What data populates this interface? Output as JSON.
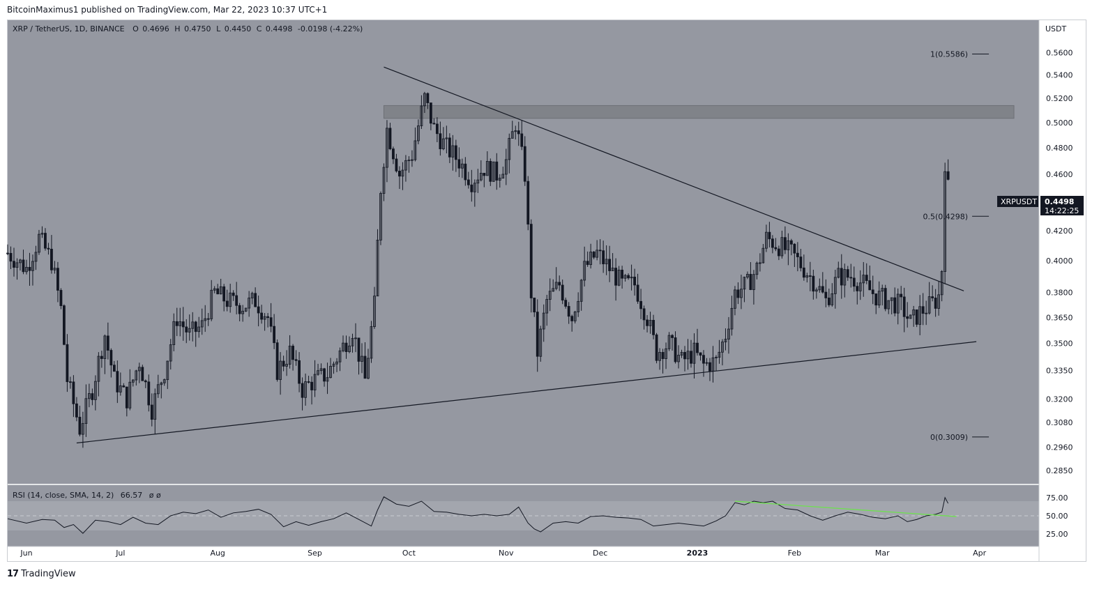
{
  "header": {
    "published": "BitcoinMaximus1 published on TradingView.com, Mar 22, 2023 10:37 UTC+1"
  },
  "footer": {
    "brand_mark": "17",
    "brand": "TradingView"
  },
  "colors": {
    "plot_bg": "#9598a1",
    "rsi_band": "#a3a6ae",
    "candle": "#131722",
    "trendline": "#131722",
    "rsi_line": "#131722",
    "rsi_trend": "#6ee14f",
    "resistance_zone": "#808389"
  },
  "chart_data": {
    "type": "candlestick",
    "symbol_line": {
      "pair": "XRP / TetherUS, 1D, BINANCE",
      "o_label": "O",
      "o_value": "0.4696",
      "h_label": "H",
      "h_value": "0.4750",
      "l_label": "L",
      "l_value": "0.4450",
      "c_label": "C",
      "c_value": "0.4498",
      "change": "-0.0198 (-4.22%)"
    },
    "currency_label": "USDT",
    "price_axis": {
      "ylim": [
        0.279,
        0.59
      ],
      "ticks": [
        "0.5600",
        "0.5400",
        "0.5200",
        "0.5000",
        "0.4800",
        "0.4600",
        "0.4200",
        "0.4000",
        "0.3800",
        "0.3650",
        "0.3500",
        "0.3350",
        "0.3200",
        "0.3080",
        "0.2960",
        "0.2850"
      ],
      "scale": "log"
    },
    "time_axis": {
      "start": "2022-05-26",
      "end": "2023-04-20",
      "labels": [
        {
          "date": "2022-06-01",
          "text": "Jun",
          "bold": false
        },
        {
          "date": "2022-07-01",
          "text": "Jul",
          "bold": false
        },
        {
          "date": "2022-08-01",
          "text": "Aug",
          "bold": false
        },
        {
          "date": "2022-09-01",
          "text": "Sep",
          "bold": false
        },
        {
          "date": "2022-10-01",
          "text": "Oct",
          "bold": false
        },
        {
          "date": "2022-11-01",
          "text": "Nov",
          "bold": false
        },
        {
          "date": "2022-12-01",
          "text": "Dec",
          "bold": false
        },
        {
          "date": "2023-01-01",
          "text": "2023",
          "bold": true
        },
        {
          "date": "2023-02-01",
          "text": "Feb",
          "bold": false
        },
        {
          "date": "2023-03-01",
          "text": "Mar",
          "bold": false
        },
        {
          "date": "2023-04-01",
          "text": "Apr",
          "bold": false
        }
      ]
    },
    "last_price": {
      "symbol": "XRPUSDT",
      "price": "0.4498",
      "countdown": "14:22:25"
    },
    "closes": [
      {
        "date": "2022-05-26",
        "close": 0.405
      },
      {
        "date": "2022-06-01",
        "close": 0.395
      },
      {
        "date": "2022-06-05",
        "close": 0.415
      },
      {
        "date": "2022-06-09",
        "close": 0.4
      },
      {
        "date": "2022-06-12",
        "close": 0.37
      },
      {
        "date": "2022-06-14",
        "close": 0.33
      },
      {
        "date": "2022-06-18",
        "close": 0.305
      },
      {
        "date": "2022-06-22",
        "close": 0.325
      },
      {
        "date": "2022-06-26",
        "close": 0.355
      },
      {
        "date": "2022-06-29",
        "close": 0.33
      },
      {
        "date": "2022-07-03",
        "close": 0.32
      },
      {
        "date": "2022-07-07",
        "close": 0.34
      },
      {
        "date": "2022-07-11",
        "close": 0.315
      },
      {
        "date": "2022-07-15",
        "close": 0.335
      },
      {
        "date": "2022-07-19",
        "close": 0.365
      },
      {
        "date": "2022-07-23",
        "close": 0.355
      },
      {
        "date": "2022-07-27",
        "close": 0.36
      },
      {
        "date": "2022-07-31",
        "close": 0.38
      },
      {
        "date": "2022-08-04",
        "close": 0.375
      },
      {
        "date": "2022-08-09",
        "close": 0.372
      },
      {
        "date": "2022-08-13",
        "close": 0.375
      },
      {
        "date": "2022-08-17",
        "close": 0.365
      },
      {
        "date": "2022-08-20",
        "close": 0.335
      },
      {
        "date": "2022-08-24",
        "close": 0.345
      },
      {
        "date": "2022-08-28",
        "close": 0.325
      },
      {
        "date": "2022-09-01",
        "close": 0.33
      },
      {
        "date": "2022-09-05",
        "close": 0.333
      },
      {
        "date": "2022-09-09",
        "close": 0.345
      },
      {
        "date": "2022-09-13",
        "close": 0.358
      },
      {
        "date": "2022-09-17",
        "close": 0.33
      },
      {
        "date": "2022-09-20",
        "close": 0.372
      },
      {
        "date": "2022-09-22",
        "close": 0.45
      },
      {
        "date": "2022-09-24",
        "close": 0.495
      },
      {
        "date": "2022-09-28",
        "close": 0.46
      },
      {
        "date": "2022-10-02",
        "close": 0.475
      },
      {
        "date": "2022-10-06",
        "close": 0.52
      },
      {
        "date": "2022-10-09",
        "close": 0.495
      },
      {
        "date": "2022-10-13",
        "close": 0.48
      },
      {
        "date": "2022-10-17",
        "close": 0.47
      },
      {
        "date": "2022-10-21",
        "close": 0.455
      },
      {
        "date": "2022-10-25",
        "close": 0.465
      },
      {
        "date": "2022-10-29",
        "close": 0.46
      },
      {
        "date": "2022-11-01",
        "close": 0.47
      },
      {
        "date": "2022-11-04",
        "close": 0.5
      },
      {
        "date": "2022-11-07",
        "close": 0.46
      },
      {
        "date": "2022-11-09",
        "close": 0.38
      },
      {
        "date": "2022-11-11",
        "close": 0.345
      },
      {
        "date": "2022-11-14",
        "close": 0.375
      },
      {
        "date": "2022-11-18",
        "close": 0.385
      },
      {
        "date": "2022-11-22",
        "close": 0.365
      },
      {
        "date": "2022-11-26",
        "close": 0.395
      },
      {
        "date": "2022-11-30",
        "close": 0.405
      },
      {
        "date": "2022-12-04",
        "close": 0.395
      },
      {
        "date": "2022-12-08",
        "close": 0.385
      },
      {
        "date": "2022-12-12",
        "close": 0.385
      },
      {
        "date": "2022-12-16",
        "close": 0.365
      },
      {
        "date": "2022-12-19",
        "close": 0.345
      },
      {
        "date": "2022-12-23",
        "close": 0.35
      },
      {
        "date": "2022-12-27",
        "close": 0.34
      },
      {
        "date": "2022-12-31",
        "close": 0.345
      },
      {
        "date": "2023-01-03",
        "close": 0.338
      },
      {
        "date": "2023-01-07",
        "close": 0.34
      },
      {
        "date": "2023-01-10",
        "close": 0.355
      },
      {
        "date": "2023-01-13",
        "close": 0.38
      },
      {
        "date": "2023-01-17",
        "close": 0.385
      },
      {
        "date": "2023-01-20",
        "close": 0.395
      },
      {
        "date": "2023-01-23",
        "close": 0.415
      },
      {
        "date": "2023-01-27",
        "close": 0.41
      },
      {
        "date": "2023-01-31",
        "close": 0.405
      },
      {
        "date": "2023-02-04",
        "close": 0.395
      },
      {
        "date": "2023-02-08",
        "close": 0.385
      },
      {
        "date": "2023-02-11",
        "close": 0.375
      },
      {
        "date": "2023-02-15",
        "close": 0.39
      },
      {
        "date": "2023-02-19",
        "close": 0.39
      },
      {
        "date": "2023-02-23",
        "close": 0.385
      },
      {
        "date": "2023-02-27",
        "close": 0.378
      },
      {
        "date": "2023-03-03",
        "close": 0.375
      },
      {
        "date": "2023-03-07",
        "close": 0.372
      },
      {
        "date": "2023-03-10",
        "close": 0.362
      },
      {
        "date": "2023-03-13",
        "close": 0.368
      },
      {
        "date": "2023-03-16",
        "close": 0.372
      },
      {
        "date": "2023-03-18",
        "close": 0.375
      },
      {
        "date": "2023-03-19",
        "close": 0.378
      },
      {
        "date": "2023-03-20",
        "close": 0.395
      },
      {
        "date": "2023-03-21",
        "close": 0.47
      },
      {
        "date": "2023-03-22",
        "close": 0.4498
      }
    ],
    "trendlines": [
      {
        "name": "descending-resistance",
        "from": {
          "date": "2022-09-23",
          "price": 0.547
        },
        "to": {
          "date": "2023-03-27",
          "price": 0.381
        }
      },
      {
        "name": "ascending-support",
        "from": {
          "date": "2022-06-17",
          "price": 0.298
        },
        "to": {
          "date": "2023-03-31",
          "price": 0.351
        }
      }
    ],
    "resistance_zone": {
      "from": "2022-09-23",
      "to": "2023-04-12",
      "low": 0.5035,
      "high": 0.514
    },
    "fibonacci": [
      {
        "level": "1",
        "price": 0.5586,
        "label": "1(0.5586)"
      },
      {
        "level": "0.5",
        "price": 0.4298,
        "label": "0.5(0.4298)"
      },
      {
        "level": "0",
        "price": 0.3009,
        "label": "0(0.3009)"
      }
    ],
    "fib_span": {
      "from": "2023-03-24",
      "to": "2023-04-04"
    },
    "rsi": {
      "legend": "RSI (14, close, SMA, 14, 2)",
      "value": "66.57",
      "extra": "ø  ø",
      "ylim": [
        0,
        100
      ],
      "band": [
        30,
        70
      ],
      "ticks": [
        "75.00",
        "50.00",
        "25.00"
      ],
      "midline": 50,
      "values": [
        {
          "date": "2022-05-26",
          "rsi": 46
        },
        {
          "date": "2022-06-01",
          "rsi": 40
        },
        {
          "date": "2022-06-06",
          "rsi": 45
        },
        {
          "date": "2022-06-10",
          "rsi": 44
        },
        {
          "date": "2022-06-13",
          "rsi": 34
        },
        {
          "date": "2022-06-16",
          "rsi": 38
        },
        {
          "date": "2022-06-19",
          "rsi": 26
        },
        {
          "date": "2022-06-23",
          "rsi": 44
        },
        {
          "date": "2022-06-27",
          "rsi": 42
        },
        {
          "date": "2022-07-01",
          "rsi": 38
        },
        {
          "date": "2022-07-05",
          "rsi": 48
        },
        {
          "date": "2022-07-09",
          "rsi": 40
        },
        {
          "date": "2022-07-13",
          "rsi": 38
        },
        {
          "date": "2022-07-17",
          "rsi": 50
        },
        {
          "date": "2022-07-21",
          "rsi": 55
        },
        {
          "date": "2022-07-25",
          "rsi": 53
        },
        {
          "date": "2022-07-29",
          "rsi": 58
        },
        {
          "date": "2022-08-02",
          "rsi": 48
        },
        {
          "date": "2022-08-06",
          "rsi": 54
        },
        {
          "date": "2022-08-10",
          "rsi": 56
        },
        {
          "date": "2022-08-14",
          "rsi": 59
        },
        {
          "date": "2022-08-18",
          "rsi": 52
        },
        {
          "date": "2022-08-22",
          "rsi": 35
        },
        {
          "date": "2022-08-26",
          "rsi": 42
        },
        {
          "date": "2022-08-30",
          "rsi": 37
        },
        {
          "date": "2022-09-03",
          "rsi": 42
        },
        {
          "date": "2022-09-07",
          "rsi": 46
        },
        {
          "date": "2022-09-11",
          "rsi": 54
        },
        {
          "date": "2022-09-15",
          "rsi": 45
        },
        {
          "date": "2022-09-19",
          "rsi": 36
        },
        {
          "date": "2022-09-21",
          "rsi": 58
        },
        {
          "date": "2022-09-23",
          "rsi": 76
        },
        {
          "date": "2022-09-27",
          "rsi": 66
        },
        {
          "date": "2022-10-01",
          "rsi": 63
        },
        {
          "date": "2022-10-05",
          "rsi": 70
        },
        {
          "date": "2022-10-09",
          "rsi": 56
        },
        {
          "date": "2022-10-13",
          "rsi": 55
        },
        {
          "date": "2022-10-17",
          "rsi": 52
        },
        {
          "date": "2022-10-21",
          "rsi": 50
        },
        {
          "date": "2022-10-25",
          "rsi": 52
        },
        {
          "date": "2022-10-29",
          "rsi": 50
        },
        {
          "date": "2022-11-02",
          "rsi": 52
        },
        {
          "date": "2022-11-05",
          "rsi": 62
        },
        {
          "date": "2022-11-08",
          "rsi": 40
        },
        {
          "date": "2022-11-10",
          "rsi": 32
        },
        {
          "date": "2022-11-12",
          "rsi": 28
        },
        {
          "date": "2022-11-16",
          "rsi": 40
        },
        {
          "date": "2022-11-20",
          "rsi": 42
        },
        {
          "date": "2022-11-24",
          "rsi": 40
        },
        {
          "date": "2022-11-28",
          "rsi": 49
        },
        {
          "date": "2022-12-02",
          "rsi": 50
        },
        {
          "date": "2022-12-06",
          "rsi": 48
        },
        {
          "date": "2022-12-10",
          "rsi": 47
        },
        {
          "date": "2022-12-14",
          "rsi": 45
        },
        {
          "date": "2022-12-18",
          "rsi": 36
        },
        {
          "date": "2022-12-22",
          "rsi": 38
        },
        {
          "date": "2022-12-26",
          "rsi": 40
        },
        {
          "date": "2022-12-30",
          "rsi": 38
        },
        {
          "date": "2023-01-03",
          "rsi": 36
        },
        {
          "date": "2023-01-07",
          "rsi": 43
        },
        {
          "date": "2023-01-10",
          "rsi": 50
        },
        {
          "date": "2023-01-13",
          "rsi": 68
        },
        {
          "date": "2023-01-16",
          "rsi": 65
        },
        {
          "date": "2023-01-19",
          "rsi": 70
        },
        {
          "date": "2023-01-22",
          "rsi": 68
        },
        {
          "date": "2023-01-25",
          "rsi": 70
        },
        {
          "date": "2023-01-29",
          "rsi": 60
        },
        {
          "date": "2023-02-02",
          "rsi": 58
        },
        {
          "date": "2023-02-06",
          "rsi": 50
        },
        {
          "date": "2023-02-10",
          "rsi": 44
        },
        {
          "date": "2023-02-14",
          "rsi": 50
        },
        {
          "date": "2023-02-18",
          "rsi": 55
        },
        {
          "date": "2023-02-22",
          "rsi": 52
        },
        {
          "date": "2023-02-26",
          "rsi": 48
        },
        {
          "date": "2023-03-02",
          "rsi": 46
        },
        {
          "date": "2023-03-06",
          "rsi": 50
        },
        {
          "date": "2023-03-09",
          "rsi": 42
        },
        {
          "date": "2023-03-12",
          "rsi": 45
        },
        {
          "date": "2023-03-15",
          "rsi": 50
        },
        {
          "date": "2023-03-18",
          "rsi": 52
        },
        {
          "date": "2023-03-20",
          "rsi": 55
        },
        {
          "date": "2023-03-21",
          "rsi": 75
        },
        {
          "date": "2023-03-22",
          "rsi": 67
        }
      ],
      "divergence_line": {
        "from": {
          "date": "2023-01-13",
          "rsi": 70
        },
        "to": {
          "date": "2023-03-22",
          "rsi": 49
        }
      }
    }
  }
}
